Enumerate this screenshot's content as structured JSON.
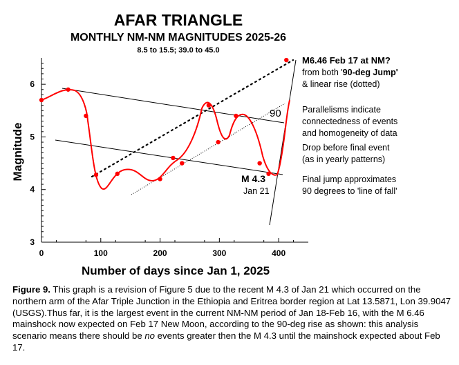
{
  "chart_data": {
    "type": "scatter",
    "title": "AFAR TRIANGLE",
    "subtitle": "MONTHLY NM-NM MAGNITUDES 2025-26",
    "range_note": "8.5 to 15.5; 39.0 to 45.0",
    "xlabel": "Number of days since Jan 1, 2025",
    "ylabel": "Magnitude",
    "xlim": [
      0,
      450
    ],
    "ylim": [
      3,
      6.5
    ],
    "x_ticks": [
      0,
      100,
      200,
      300,
      400
    ],
    "y_ticks": [
      3,
      4,
      5,
      6
    ],
    "grid": false,
    "series": [
      {
        "x": [
          0,
          45,
          75,
          92,
          128,
          200,
          222,
          237,
          282,
          298,
          328,
          368,
          383,
          413
        ],
        "y": [
          5.7,
          5.9,
          5.4,
          4.28,
          4.3,
          4.2,
          4.6,
          4.5,
          5.6,
          4.9,
          5.4,
          4.5,
          4.3,
          6.46
        ]
      }
    ],
    "annotations": {
      "prediction_label": "M6.46 Feb 17 at NM?",
      "prediction_note_prefix": "from both '",
      "prediction_note_bold": "90-deg Jump'",
      "prediction_note_line2": "& linear rise (dotted)",
      "angle_label": "90",
      "event_label": "M 4.3",
      "event_date": "Jan 21",
      "notes": [
        "Parallelisms indicate",
        "connectedness of events",
        "and homogeneity of data",
        "Drop before final event",
        "(as in yearly patterns)",
        "Final jump approximates",
        "90 degrees to 'line of fall'"
      ]
    }
  },
  "caption": {
    "figure_label": "Figure 9.",
    "part1": " This graph is a revision of Figure 5 due to the recent M 4.3 of Jan 21 which occurred on the northern arm of the Afar Triple Junction in the Ethiopia and Eritrea border region at Lat 13.5871, Lon 39.9047 (USGS).Thus far, it is the largest event in the current NM-NM period of Jan 18-Feb 16, with the M 6.46 mainshock now expected on Feb 17 New Moon, according to the 90-deg rise as shown: this analysis scenario means there should be ",
    "emphasis": "no",
    "part2": " events greater then the M 4.3 until the mainshock expected about Feb 17."
  },
  "colors": {
    "data": "#ff0000",
    "axis": "#000000",
    "guide_lines": "#000000"
  }
}
